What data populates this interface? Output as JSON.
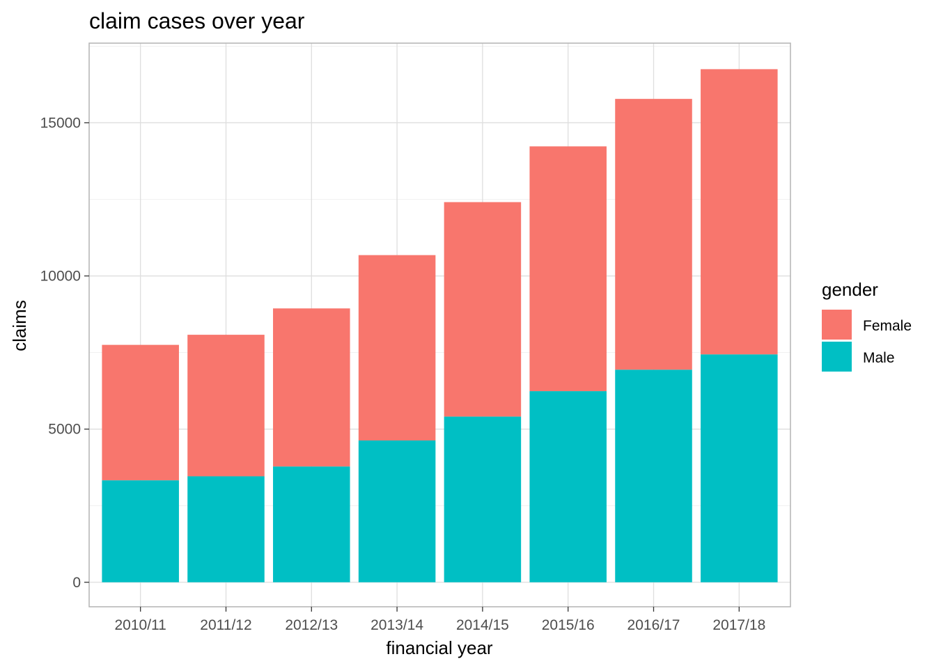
{
  "chart_data": {
    "type": "bar",
    "stacked": true,
    "title": "claim cases over year",
    "xlabel": "financial year",
    "ylabel": "claims",
    "categories": [
      "2010/11",
      "2011/12",
      "2012/13",
      "2013/14",
      "2014/15",
      "2015/16",
      "2016/17",
      "2017/18"
    ],
    "series": [
      {
        "name": "Male",
        "color": "#00BFC4",
        "values": [
          3330,
          3460,
          3780,
          4630,
          5410,
          6240,
          6940,
          7440
        ]
      },
      {
        "name": "Female",
        "color": "#F8766D",
        "values": [
          4420,
          4620,
          5160,
          6050,
          7000,
          7990,
          8840,
          9310
        ]
      }
    ],
    "yticks": [
      0,
      5000,
      10000,
      15000
    ],
    "ylim": [
      -800,
      17600
    ],
    "grid": true,
    "legend": {
      "title": "gender",
      "position": "right",
      "items": [
        {
          "label": "Female",
          "color": "#F8766D"
        },
        {
          "label": "Male",
          "color": "#00BFC4"
        }
      ]
    }
  }
}
